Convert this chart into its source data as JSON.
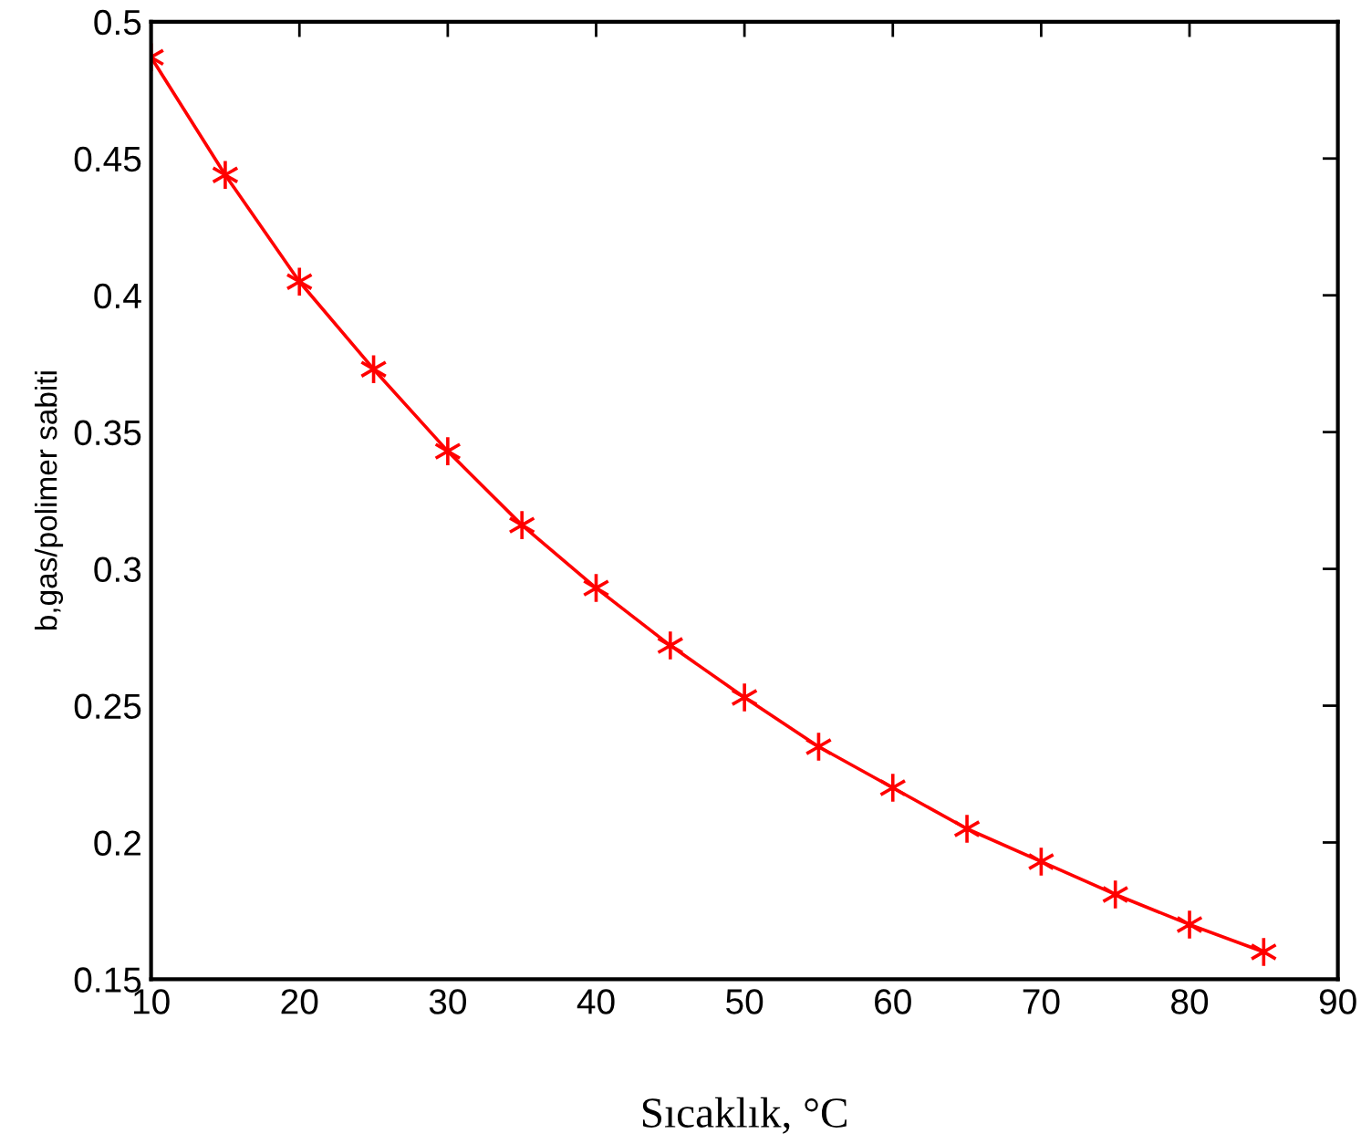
{
  "chart_data": {
    "type": "line",
    "xlabel": "Sıcaklık, °C",
    "ylabel": "b,gas/polimer sabiti",
    "x": [
      10,
      15,
      20,
      25,
      30,
      35,
      40,
      45,
      50,
      55,
      60,
      65,
      70,
      75,
      80,
      85
    ],
    "series": [
      {
        "color": "#ff0000",
        "values": [
          0.487,
          0.444,
          0.405,
          0.373,
          0.343,
          0.316,
          0.293,
          0.272,
          0.253,
          0.235,
          0.22,
          0.205,
          0.193,
          0.181,
          0.17,
          0.16
        ]
      }
    ],
    "xlim": [
      10,
      90
    ],
    "xticks": [
      10,
      20,
      30,
      40,
      50,
      60,
      70,
      80,
      90
    ],
    "ylim": [
      0.15,
      0.5
    ],
    "yticks": [
      0.15,
      0.2,
      0.25,
      0.3,
      0.35,
      0.4,
      0.45,
      0.5
    ],
    "grid": false,
    "legend": false,
    "marker": "cross",
    "line_style": "solid"
  }
}
